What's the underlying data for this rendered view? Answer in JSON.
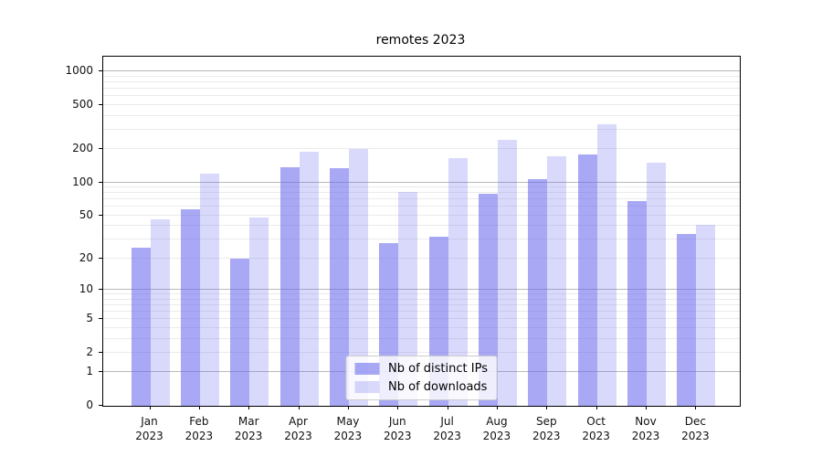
{
  "chart_data": {
    "type": "bar",
    "title": "remotes 2023",
    "categories": [
      "Jan",
      "Feb",
      "Mar",
      "Apr",
      "May",
      "Jun",
      "Jul",
      "Aug",
      "Sep",
      "Oct",
      "Nov",
      "Dec"
    ],
    "category_year": "2023",
    "series": [
      {
        "name": "Nb of distinct IPs",
        "color": "rgba(102,102,238,0.57)",
        "values": [
          25,
          57,
          20,
          138,
          135,
          28,
          32,
          79,
          108,
          179,
          68,
          34
        ]
      },
      {
        "name": "Nb of downloads",
        "color": "rgba(102,102,238,0.25)",
        "values": [
          46,
          119,
          48,
          188,
          202,
          82,
          167,
          244,
          171,
          335,
          150,
          41
        ]
      }
    ],
    "yscale": "log1p",
    "ymax": 1355,
    "yticks": [
      0,
      1,
      2,
      5,
      10,
      20,
      50,
      100,
      200,
      500,
      1000
    ],
    "gridlines": {
      "major": [
        1,
        10,
        100,
        1000
      ],
      "minor": [
        2,
        3,
        4,
        5,
        6,
        7,
        8,
        9,
        20,
        30,
        40,
        50,
        60,
        70,
        80,
        90,
        200,
        300,
        400,
        500,
        600,
        700,
        800,
        900
      ]
    },
    "legend": {
      "position": "lower center"
    },
    "colors": {
      "grid_major": "#b9b9b9",
      "grid_minor": "#ebebeb",
      "spine": "#000000",
      "text": "#111111"
    }
  }
}
